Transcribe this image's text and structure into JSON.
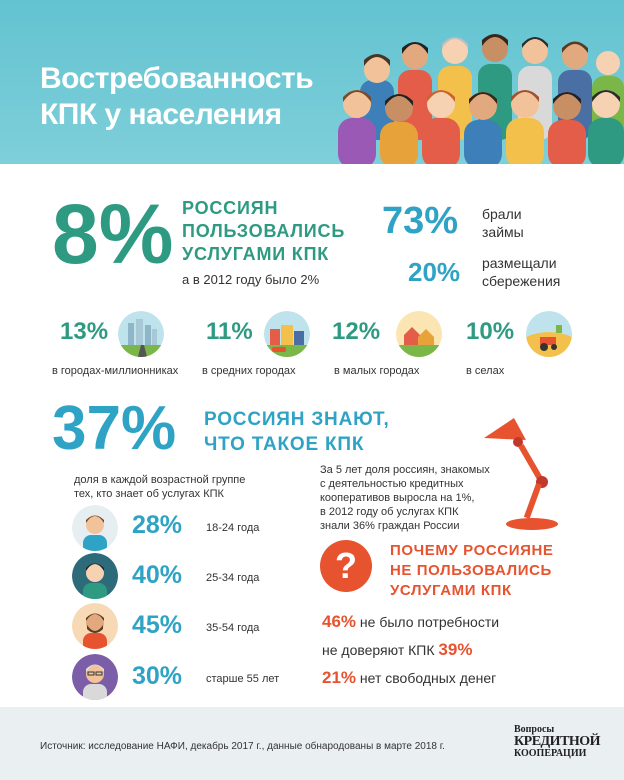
{
  "header": {
    "title_line1": "Востребованность",
    "title_line2": "КПК у населения"
  },
  "usage": {
    "percent": "8%",
    "heading_line1": "РОССИЯН",
    "heading_line2": "ПОЛЬЗОВАЛИСЬ",
    "heading_line3": "УСЛУГАМИ КПК",
    "note": "а в 2012 году было 2%",
    "loans_percent": "73%",
    "loans_label_line1": "брали",
    "loans_label_line2": "займы",
    "savings_percent": "20%",
    "savings_label_line1": "размещали",
    "savings_label_line2": "сбережения"
  },
  "settlements": [
    {
      "percent": "13%",
      "label": "в городах-миллионниках",
      "icon": "city-skyline-icon"
    },
    {
      "percent": "11%",
      "label": "в средних городах",
      "icon": "town-icon"
    },
    {
      "percent": "12%",
      "label": "в малых городах",
      "icon": "small-town-icon"
    },
    {
      "percent": "10%",
      "label": "в селах",
      "icon": "village-tractor-icon"
    }
  ],
  "awareness": {
    "percent": "37%",
    "heading_line1": "РОССИЯН ЗНАЮТ,",
    "heading_line2": "ЧТО ТАКОЕ КПК",
    "subtitle_line1": "доля в каждой возрастной группе",
    "subtitle_line2": "тех, кто знает об услугах КПК",
    "note_line1": "За 5 лет доля россиян, знакомых",
    "note_line2": "с деятельностью кредитных",
    "note_line3": "кооперативов выросла на 1%,",
    "note_line4": "в 2012 году об услугах КПК",
    "note_line5": "знали 36% граждан России",
    "age_groups": [
      {
        "percent": "28%",
        "label": "18-24 года",
        "avatar_color": "#2fa3c5"
      },
      {
        "percent": "40%",
        "label": "25-34 года",
        "avatar_color": "#2e9a82"
      },
      {
        "percent": "45%",
        "label": "35-54 года",
        "avatar_color": "#e8532f"
      },
      {
        "percent": "30%",
        "label": "старше 55 лет",
        "avatar_color": "#7b5ea7"
      }
    ]
  },
  "reasons": {
    "heading_line1": "ПОЧЕМУ РОССИЯНЕ",
    "heading_line2": "НЕ ПОЛЬЗОВАЛИСЬ",
    "heading_line3": "УСЛУГАМИ КПК",
    "item1_percent": "46%",
    "item1_text": "не было потребности",
    "item2_text": "не доверяют КПК",
    "item2_percent": "39%",
    "item3_percent": "21%",
    "item3_text": "нет свободных денег"
  },
  "footer": {
    "source": "Источник: исследование НАФИ, декабрь 2017 г., данные обнародованы в марте 2018 г.",
    "logo_line1": "Вопросы",
    "logo_line2": "КРЕДИТНОЙ",
    "logo_line3": "КООПЕРАЦИИ"
  },
  "colors": {
    "header_bg": "#63c3d1",
    "teal": "#2e9a82",
    "blue": "#2fa3c5",
    "orange": "#e8532f"
  }
}
